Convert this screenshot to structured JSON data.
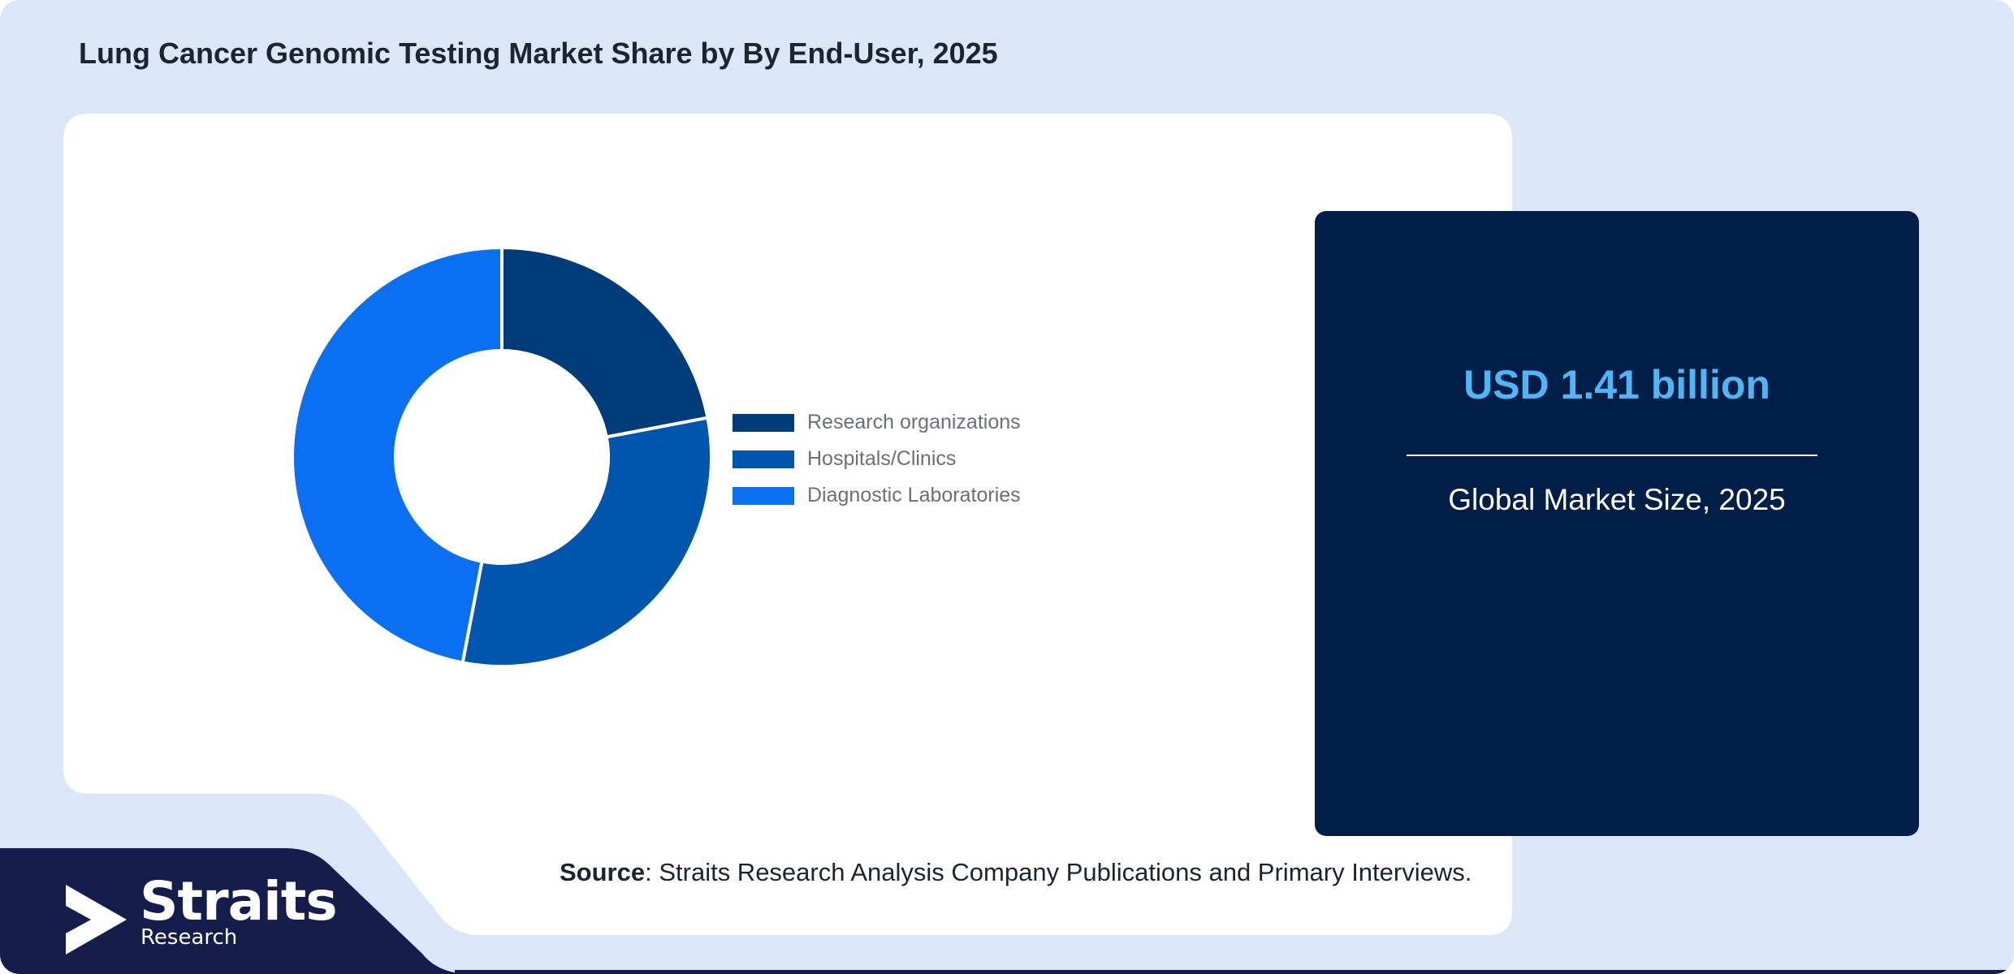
{
  "title": "Lung Cancer Genomic Testing Market Share by By End-User, 2025",
  "chart_data": {
    "type": "pie",
    "style": "donut",
    "categories": [
      "Research organizations",
      "Hospitals/Clinics",
      "Diagnostic Laboratories"
    ],
    "values": [
      22,
      31,
      47
    ],
    "unit": "%",
    "legend": "right",
    "colors": [
      "#003b7a",
      "#0055ad",
      "#0a6ff0"
    ]
  },
  "stat_card": {
    "value": "USD 1.41 billion",
    "label": "Global Market Size, 2025"
  },
  "source": {
    "label": "Source",
    "text": ": Straits Research Analysis Company Publications and Primary Interviews."
  },
  "logo": {
    "name": "Straits",
    "sub": "Research"
  },
  "colors": {
    "background": "#dbe7f9",
    "panel": "#ffffff",
    "card": "#001e48",
    "accent": "#4fb6f5",
    "footer": "#141d4c"
  }
}
